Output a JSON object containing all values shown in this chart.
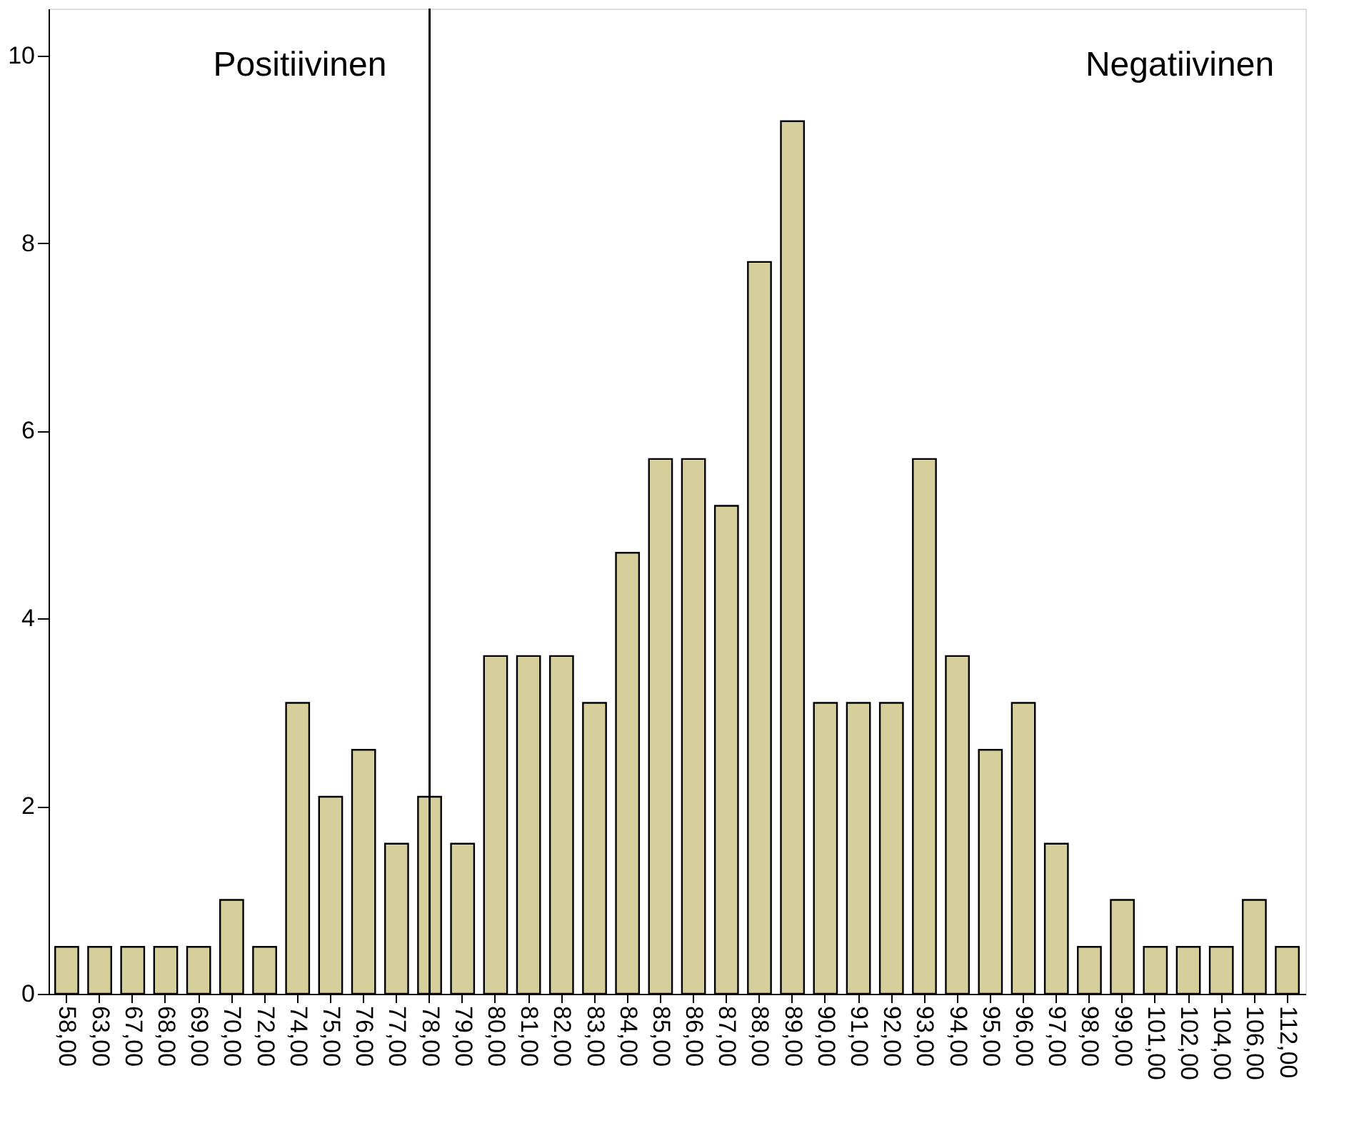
{
  "chart_data": {
    "type": "bar",
    "categories": [
      "58,00",
      "63,00",
      "67,00",
      "68,00",
      "69,00",
      "70,00",
      "72,00",
      "74,00",
      "75,00",
      "76,00",
      "77,00",
      "78,00",
      "79,00",
      "80,00",
      "81,00",
      "82,00",
      "83,00",
      "84,00",
      "85,00",
      "86,00",
      "87,00",
      "88,00",
      "89,00",
      "90,00",
      "91,00",
      "92,00",
      "93,00",
      "94,00",
      "95,00",
      "96,00",
      "97,00",
      "98,00",
      "99,00",
      "101,00",
      "102,00",
      "104,00",
      "106,00",
      "112,00"
    ],
    "values": [
      0.5,
      0.5,
      0.5,
      0.5,
      0.5,
      1.0,
      0.5,
      3.1,
      2.1,
      2.6,
      1.6,
      2.1,
      1.6,
      3.6,
      3.6,
      3.6,
      3.1,
      4.7,
      5.7,
      5.7,
      5.2,
      7.8,
      9.3,
      3.1,
      3.1,
      3.1,
      5.7,
      3.6,
      2.6,
      3.1,
      1.6,
      0.5,
      1.0,
      0.5,
      0.5,
      0.5,
      1.0,
      0.5
    ],
    "color": "#d6cf9b",
    "ylim": [
      0,
      10.5
    ],
    "yticks": [
      0,
      2,
      4,
      6,
      8,
      10
    ],
    "grid": false,
    "ref_lines": [
      {
        "axis": "x",
        "value": "78,00",
        "color": "#000000"
      }
    ],
    "annotations": [
      "Positiivinen",
      "Negatiivinen"
    ]
  }
}
